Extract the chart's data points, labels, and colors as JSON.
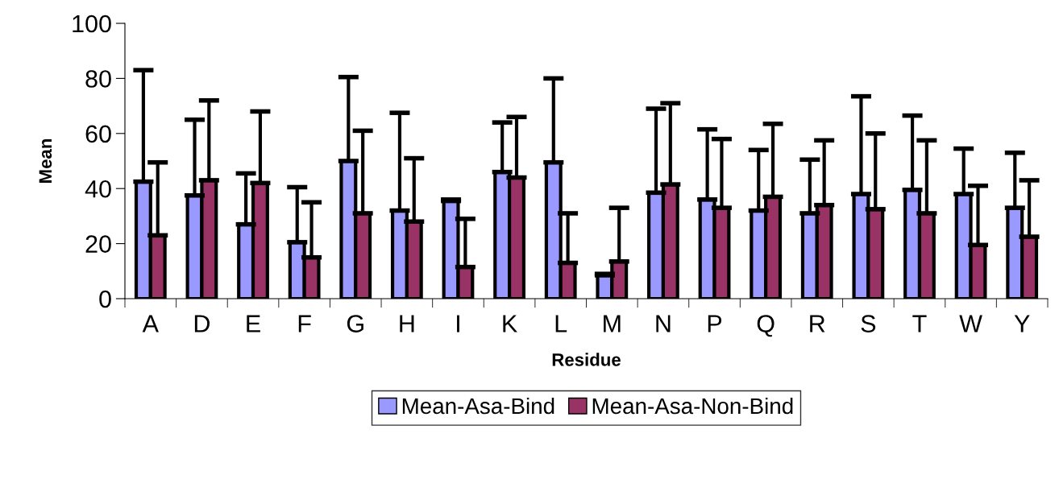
{
  "chart_data": {
    "type": "bar",
    "xlabel": "Residue",
    "ylabel": "Mean",
    "categories": [
      "A",
      "D",
      "E",
      "F",
      "G",
      "H",
      "I",
      "K",
      "L",
      "M",
      "N",
      "P",
      "Q",
      "R",
      "S",
      "T",
      "W",
      "Y"
    ],
    "series": [
      {
        "name": "Mean-Asa-Bind",
        "color": "#9999ff",
        "values": [
          42.5,
          37.5,
          27,
          20.5,
          50,
          32,
          35.5,
          46,
          49.5,
          8.5,
          38.5,
          36,
          32,
          31,
          38,
          39.5,
          38,
          33
        ],
        "errors": [
          [
            42.5,
            83
          ],
          [
            37.5,
            65
          ],
          [
            27,
            45.5
          ],
          [
            20.5,
            40.5
          ],
          [
            50,
            80.5
          ],
          [
            32,
            67.5
          ],
          [
            35.5,
            36
          ],
          [
            46,
            64
          ],
          [
            49.5,
            80
          ],
          [
            8.5,
            9
          ],
          [
            38.5,
            69
          ],
          [
            36,
            61.5
          ],
          [
            32,
            54
          ],
          [
            31,
            50.5
          ],
          [
            38,
            73.5
          ],
          [
            39.5,
            66.5
          ],
          [
            38,
            54.5
          ],
          [
            33,
            53
          ]
        ]
      },
      {
        "name": "Mean-Asa-Non-Bind",
        "color": "#993366",
        "values": [
          23,
          43,
          42,
          15,
          31,
          28,
          11.5,
          44,
          13,
          13.5,
          41.5,
          33,
          37,
          34,
          32.5,
          31,
          19.5,
          22.5
        ],
        "errors": [
          [
            23,
            49.5
          ],
          [
            43,
            72
          ],
          [
            42,
            68
          ],
          [
            15,
            35
          ],
          [
            31,
            61
          ],
          [
            28,
            51
          ],
          [
            11.5,
            29
          ],
          [
            44,
            66
          ],
          [
            13,
            31
          ],
          [
            13.5,
            33
          ],
          [
            41.5,
            71
          ],
          [
            33,
            58
          ],
          [
            37,
            63.5
          ],
          [
            34,
            57.5
          ],
          [
            32.5,
            60
          ],
          [
            31,
            57.5
          ],
          [
            19.5,
            41
          ],
          [
            22.5,
            43
          ]
        ]
      }
    ],
    "ylim": [
      0,
      100
    ],
    "yticks": [
      0,
      20,
      40,
      60,
      80,
      100
    ],
    "grid": false,
    "legend": "bottom"
  }
}
